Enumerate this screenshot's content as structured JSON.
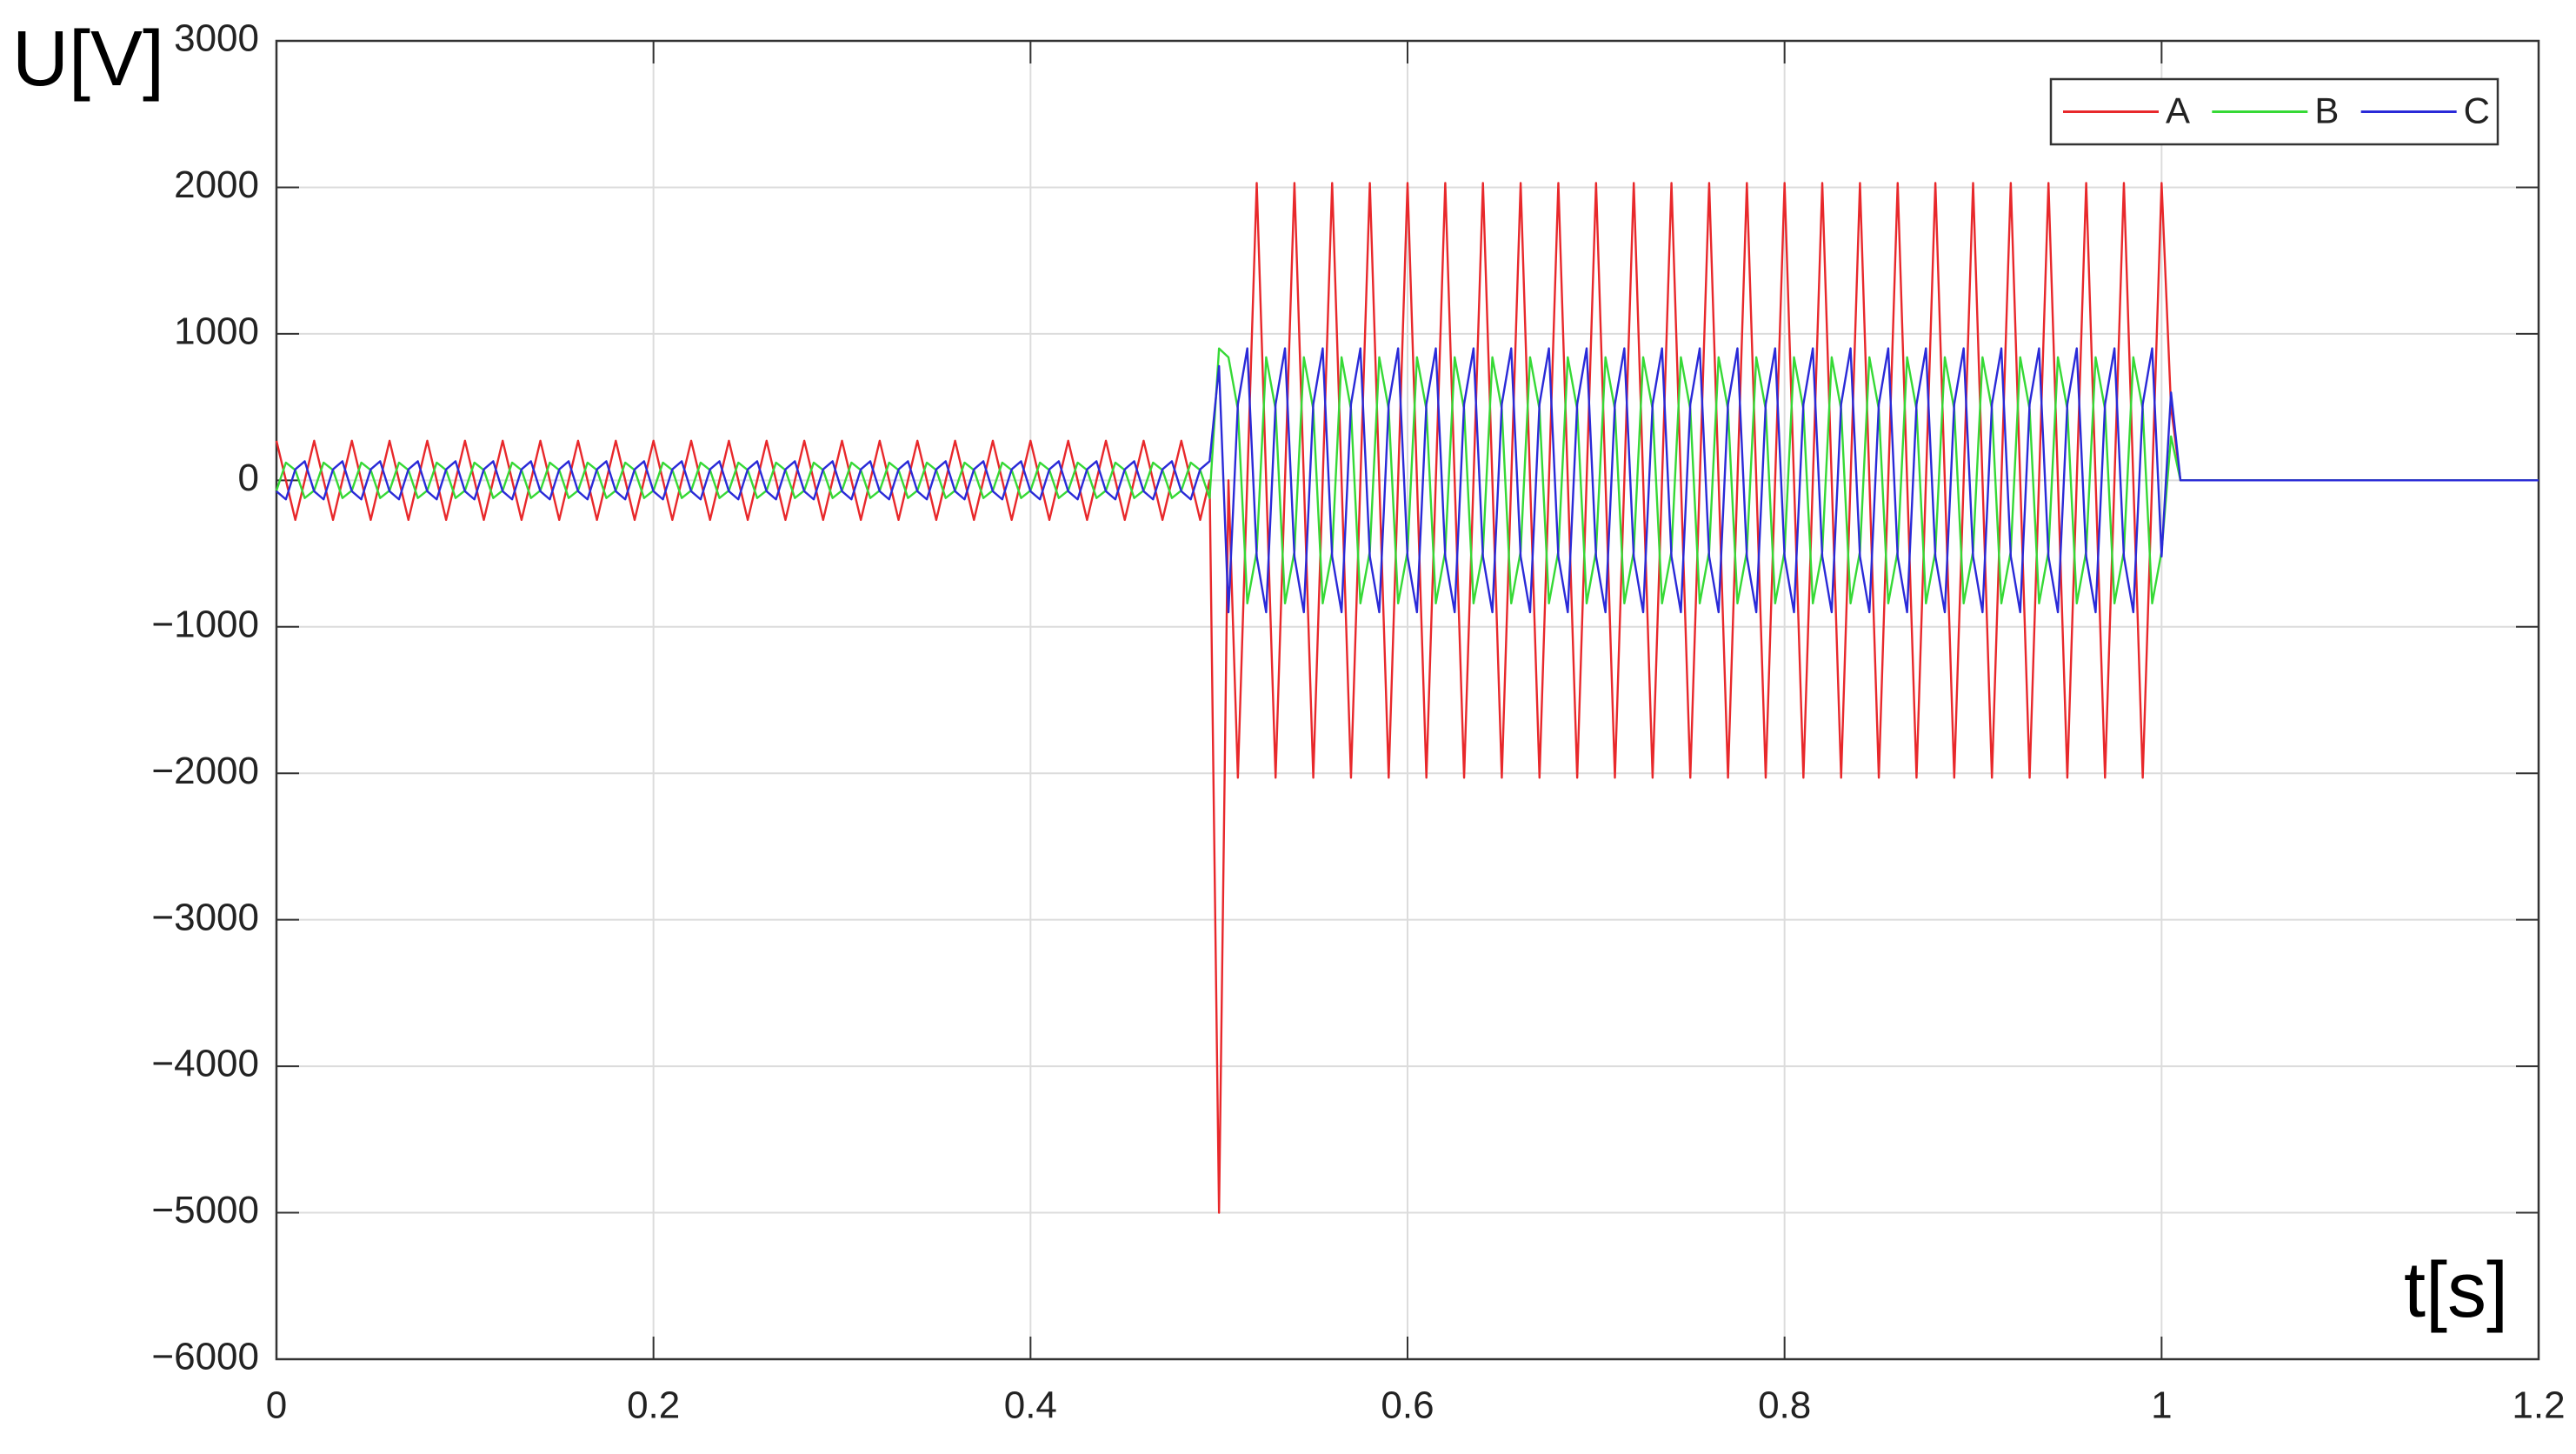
{
  "chart_data": {
    "type": "line",
    "ylabel": "U[V]",
    "xlabel": "t[s]",
    "xlim": [
      0,
      1.2
    ],
    "xticks": [
      0,
      0.2,
      0.4,
      0.6,
      0.8,
      1,
      1.2
    ],
    "ylim": [
      -6000,
      3000
    ],
    "yticks": [
      {
        "value": -6000,
        "label": "−6000"
      },
      {
        "value": -5000,
        "label": "−5000"
      },
      {
        "value": -4000,
        "label": "−4000"
      },
      {
        "value": -3000,
        "label": "−3000"
      },
      {
        "value": -2000,
        "label": "−2000"
      },
      {
        "value": -1000,
        "label": "−1000"
      },
      0,
      1000,
      2000,
      3000
    ],
    "grid": true,
    "legend": "upper right",
    "x": [
      0,
      0.005,
      0.01,
      0.015,
      0.02,
      0.025,
      0.03,
      0.035,
      0.04,
      0.045,
      0.05,
      0.055,
      0.06,
      0.065,
      0.07,
      0.075,
      0.08,
      0.085,
      0.09,
      0.095,
      0.1,
      0.105,
      0.11,
      0.115,
      0.12,
      0.125,
      0.13,
      0.135,
      0.14,
      0.145,
      0.15,
      0.155,
      0.16,
      0.165,
      0.17,
      0.175,
      0.18,
      0.185,
      0.19,
      0.195,
      0.2,
      0.205,
      0.21,
      0.215,
      0.22,
      0.225,
      0.23,
      0.235,
      0.24,
      0.245,
      0.25,
      0.255,
      0.26,
      0.265,
      0.27,
      0.275,
      0.28,
      0.285,
      0.29,
      0.295,
      0.3,
      0.305,
      0.31,
      0.315,
      0.32,
      0.325,
      0.33,
      0.335,
      0.34,
      0.345,
      0.35,
      0.355,
      0.36,
      0.365,
      0.37,
      0.375,
      0.38,
      0.385,
      0.39,
      0.395,
      0.4,
      0.405,
      0.41,
      0.415,
      0.42,
      0.425,
      0.43,
      0.435,
      0.44,
      0.445,
      0.45,
      0.455,
      0.46,
      0.465,
      0.47,
      0.475,
      0.48,
      0.485,
      0.49,
      0.495,
      0.5,
      0.505,
      0.51,
      0.515,
      0.52,
      0.525,
      0.53,
      0.535,
      0.54,
      0.545,
      0.55,
      0.555,
      0.56,
      0.565,
      0.57,
      0.575,
      0.58,
      0.585,
      0.59,
      0.595,
      0.6,
      0.605,
      0.61,
      0.615,
      0.62,
      0.625,
      0.63,
      0.635,
      0.64,
      0.645,
      0.65,
      0.655,
      0.66,
      0.665,
      0.67,
      0.675,
      0.68,
      0.685,
      0.69,
      0.695,
      0.7,
      0.705,
      0.71,
      0.715,
      0.72,
      0.725,
      0.73,
      0.735,
      0.74,
      0.745,
      0.75,
      0.755,
      0.76,
      0.765,
      0.77,
      0.775,
      0.78,
      0.785,
      0.79,
      0.795,
      0.8,
      0.805,
      0.81,
      0.815,
      0.82,
      0.825,
      0.83,
      0.835,
      0.84,
      0.845,
      0.85,
      0.855,
      0.86,
      0.865,
      0.87,
      0.875,
      0.88,
      0.885,
      0.89,
      0.895,
      0.9,
      0.905,
      0.91,
      0.915,
      0.92,
      0.925,
      0.93,
      0.935,
      0.94,
      0.945,
      0.95,
      0.955,
      0.96,
      0.965,
      0.97,
      0.975,
      0.98,
      0.985,
      0.99,
      0.995,
      1,
      1.005,
      1.01,
      1.2
    ],
    "series": [
      {
        "name": "A",
        "color": "#e8282b",
        "values": [
          270,
          0,
          -270,
          0,
          270,
          0,
          -270,
          0,
          270,
          0,
          -270,
          0,
          270,
          0,
          -270,
          0,
          270,
          0,
          -270,
          0,
          270,
          0,
          -270,
          0,
          270,
          0,
          -270,
          0,
          270,
          0,
          -270,
          0,
          270,
          0,
          -270,
          0,
          270,
          0,
          -270,
          0,
          270,
          0,
          -270,
          0,
          270,
          0,
          -270,
          0,
          270,
          0,
          -270,
          0,
          270,
          0,
          -270,
          0,
          270,
          0,
          -270,
          0,
          270,
          0,
          -270,
          0,
          270,
          0,
          -270,
          0,
          270,
          0,
          -270,
          0,
          270,
          0,
          -270,
          0,
          270,
          0,
          -270,
          0,
          270,
          0,
          -270,
          0,
          270,
          0,
          -270,
          0,
          270,
          0,
          -270,
          0,
          270,
          0,
          -270,
          0,
          270,
          0,
          -270,
          0,
          -5000,
          0,
          -2030,
          0,
          2030,
          0,
          -2030,
          0,
          2030,
          0,
          -2030,
          0,
          2030,
          0,
          -2030,
          0,
          2030,
          0,
          -2030,
          0,
          2030,
          0,
          -2030,
          0,
          2030,
          0,
          -2030,
          0,
          2030,
          0,
          -2030,
          0,
          2030,
          0,
          -2030,
          0,
          2030,
          0,
          -2030,
          0,
          2030,
          0,
          -2030,
          0,
          2030,
          0,
          -2030,
          0,
          2030,
          0,
          -2030,
          0,
          2030,
          0,
          -2030,
          0,
          2030,
          0,
          -2030,
          0,
          2030,
          0,
          -2030,
          0,
          2030,
          0,
          -2030,
          0,
          2030,
          0,
          -2030,
          0,
          2030,
          0,
          -2030,
          0,
          2030,
          0,
          -2030,
          0,
          2030,
          0,
          -2030,
          0,
          2030,
          0,
          -2030,
          0,
          2030,
          0,
          -2030,
          0,
          2030,
          0,
          -2030,
          0,
          2030,
          0,
          -2030,
          0,
          2030,
          500,
          0,
          0
        ]
      },
      {
        "name": "B",
        "color": "#36d936",
        "values": [
          -70,
          121,
          70,
          -121,
          -70,
          121,
          70,
          -121,
          -70,
          121,
          70,
          -121,
          -70,
          121,
          70,
          -121,
          -70,
          121,
          70,
          -121,
          -70,
          121,
          70,
          -121,
          -70,
          121,
          70,
          -121,
          -70,
          121,
          70,
          -121,
          -70,
          121,
          70,
          -121,
          -70,
          121,
          70,
          -121,
          -70,
          121,
          70,
          -121,
          -70,
          121,
          70,
          -121,
          -70,
          121,
          70,
          -121,
          -70,
          121,
          70,
          -121,
          -70,
          121,
          70,
          -121,
          -70,
          121,
          70,
          -121,
          -70,
          121,
          70,
          -121,
          -70,
          121,
          70,
          -121,
          -70,
          121,
          70,
          -121,
          -70,
          121,
          70,
          -121,
          -70,
          121,
          70,
          -121,
          -70,
          121,
          70,
          -121,
          -70,
          121,
          70,
          -121,
          -70,
          121,
          70,
          -121,
          -70,
          121,
          70,
          -121,
          900,
          840,
          485,
          -840,
          -485,
          840,
          485,
          -840,
          -485,
          840,
          485,
          -840,
          -485,
          840,
          485,
          -840,
          -485,
          840,
          485,
          -840,
          -485,
          840,
          485,
          -840,
          -485,
          840,
          485,
          -840,
          -485,
          840,
          485,
          -840,
          -485,
          840,
          485,
          -840,
          -485,
          840,
          485,
          -840,
          -485,
          840,
          485,
          -840,
          -485,
          840,
          485,
          -840,
          -485,
          840,
          485,
          -840,
          -485,
          840,
          485,
          -840,
          -485,
          840,
          485,
          -840,
          -485,
          840,
          485,
          -840,
          -485,
          840,
          485,
          -840,
          -485,
          840,
          485,
          -840,
          -485,
          840,
          485,
          -840,
          -485,
          840,
          485,
          -840,
          -485,
          840,
          485,
          -840,
          -485,
          840,
          485,
          -840,
          -485,
          840,
          485,
          -840,
          -485,
          840,
          485,
          -840,
          -485,
          840,
          485,
          -840,
          -485,
          300,
          0,
          0
        ]
      },
      {
        "name": "C",
        "color": "#2a2ad8",
        "values": [
          -75,
          -130,
          75,
          130,
          -75,
          -130,
          75,
          130,
          -75,
          -130,
          75,
          130,
          -75,
          -130,
          75,
          130,
          -75,
          -130,
          75,
          130,
          -75,
          -130,
          75,
          130,
          -75,
          -130,
          75,
          130,
          -75,
          -130,
          75,
          130,
          -75,
          -130,
          75,
          130,
          -75,
          -130,
          75,
          130,
          -75,
          -130,
          75,
          130,
          -75,
          -130,
          75,
          130,
          -75,
          -130,
          75,
          130,
          -75,
          -130,
          75,
          130,
          -75,
          -130,
          75,
          130,
          -75,
          -130,
          75,
          130,
          -75,
          -130,
          75,
          130,
          -75,
          -130,
          75,
          130,
          -75,
          -130,
          75,
          130,
          -75,
          -130,
          75,
          130,
          -75,
          -130,
          75,
          130,
          -75,
          -130,
          75,
          130,
          -75,
          -130,
          75,
          130,
          -75,
          -130,
          75,
          130,
          -75,
          -130,
          75,
          130,
          780,
          -901,
          520,
          901,
          -520,
          -901,
          520,
          901,
          -520,
          -901,
          520,
          901,
          -520,
          -901,
          520,
          901,
          -520,
          -901,
          520,
          901,
          -520,
          -901,
          520,
          901,
          -520,
          -901,
          520,
          901,
          -520,
          -901,
          520,
          901,
          -520,
          -901,
          520,
          901,
          -520,
          -901,
          520,
          901,
          -520,
          -901,
          520,
          901,
          -520,
          -901,
          520,
          901,
          -520,
          -901,
          520,
          901,
          -520,
          -901,
          520,
          901,
          -520,
          -901,
          520,
          901,
          -520,
          -901,
          520,
          901,
          -520,
          -901,
          520,
          901,
          -520,
          -901,
          520,
          901,
          -520,
          -901,
          520,
          901,
          -520,
          -901,
          520,
          901,
          -520,
          -901,
          520,
          901,
          -520,
          -901,
          520,
          901,
          -520,
          -901,
          520,
          901,
          -520,
          -901,
          520,
          901,
          -520,
          -901,
          520,
          901,
          -520,
          600,
          0,
          0
        ]
      }
    ]
  }
}
